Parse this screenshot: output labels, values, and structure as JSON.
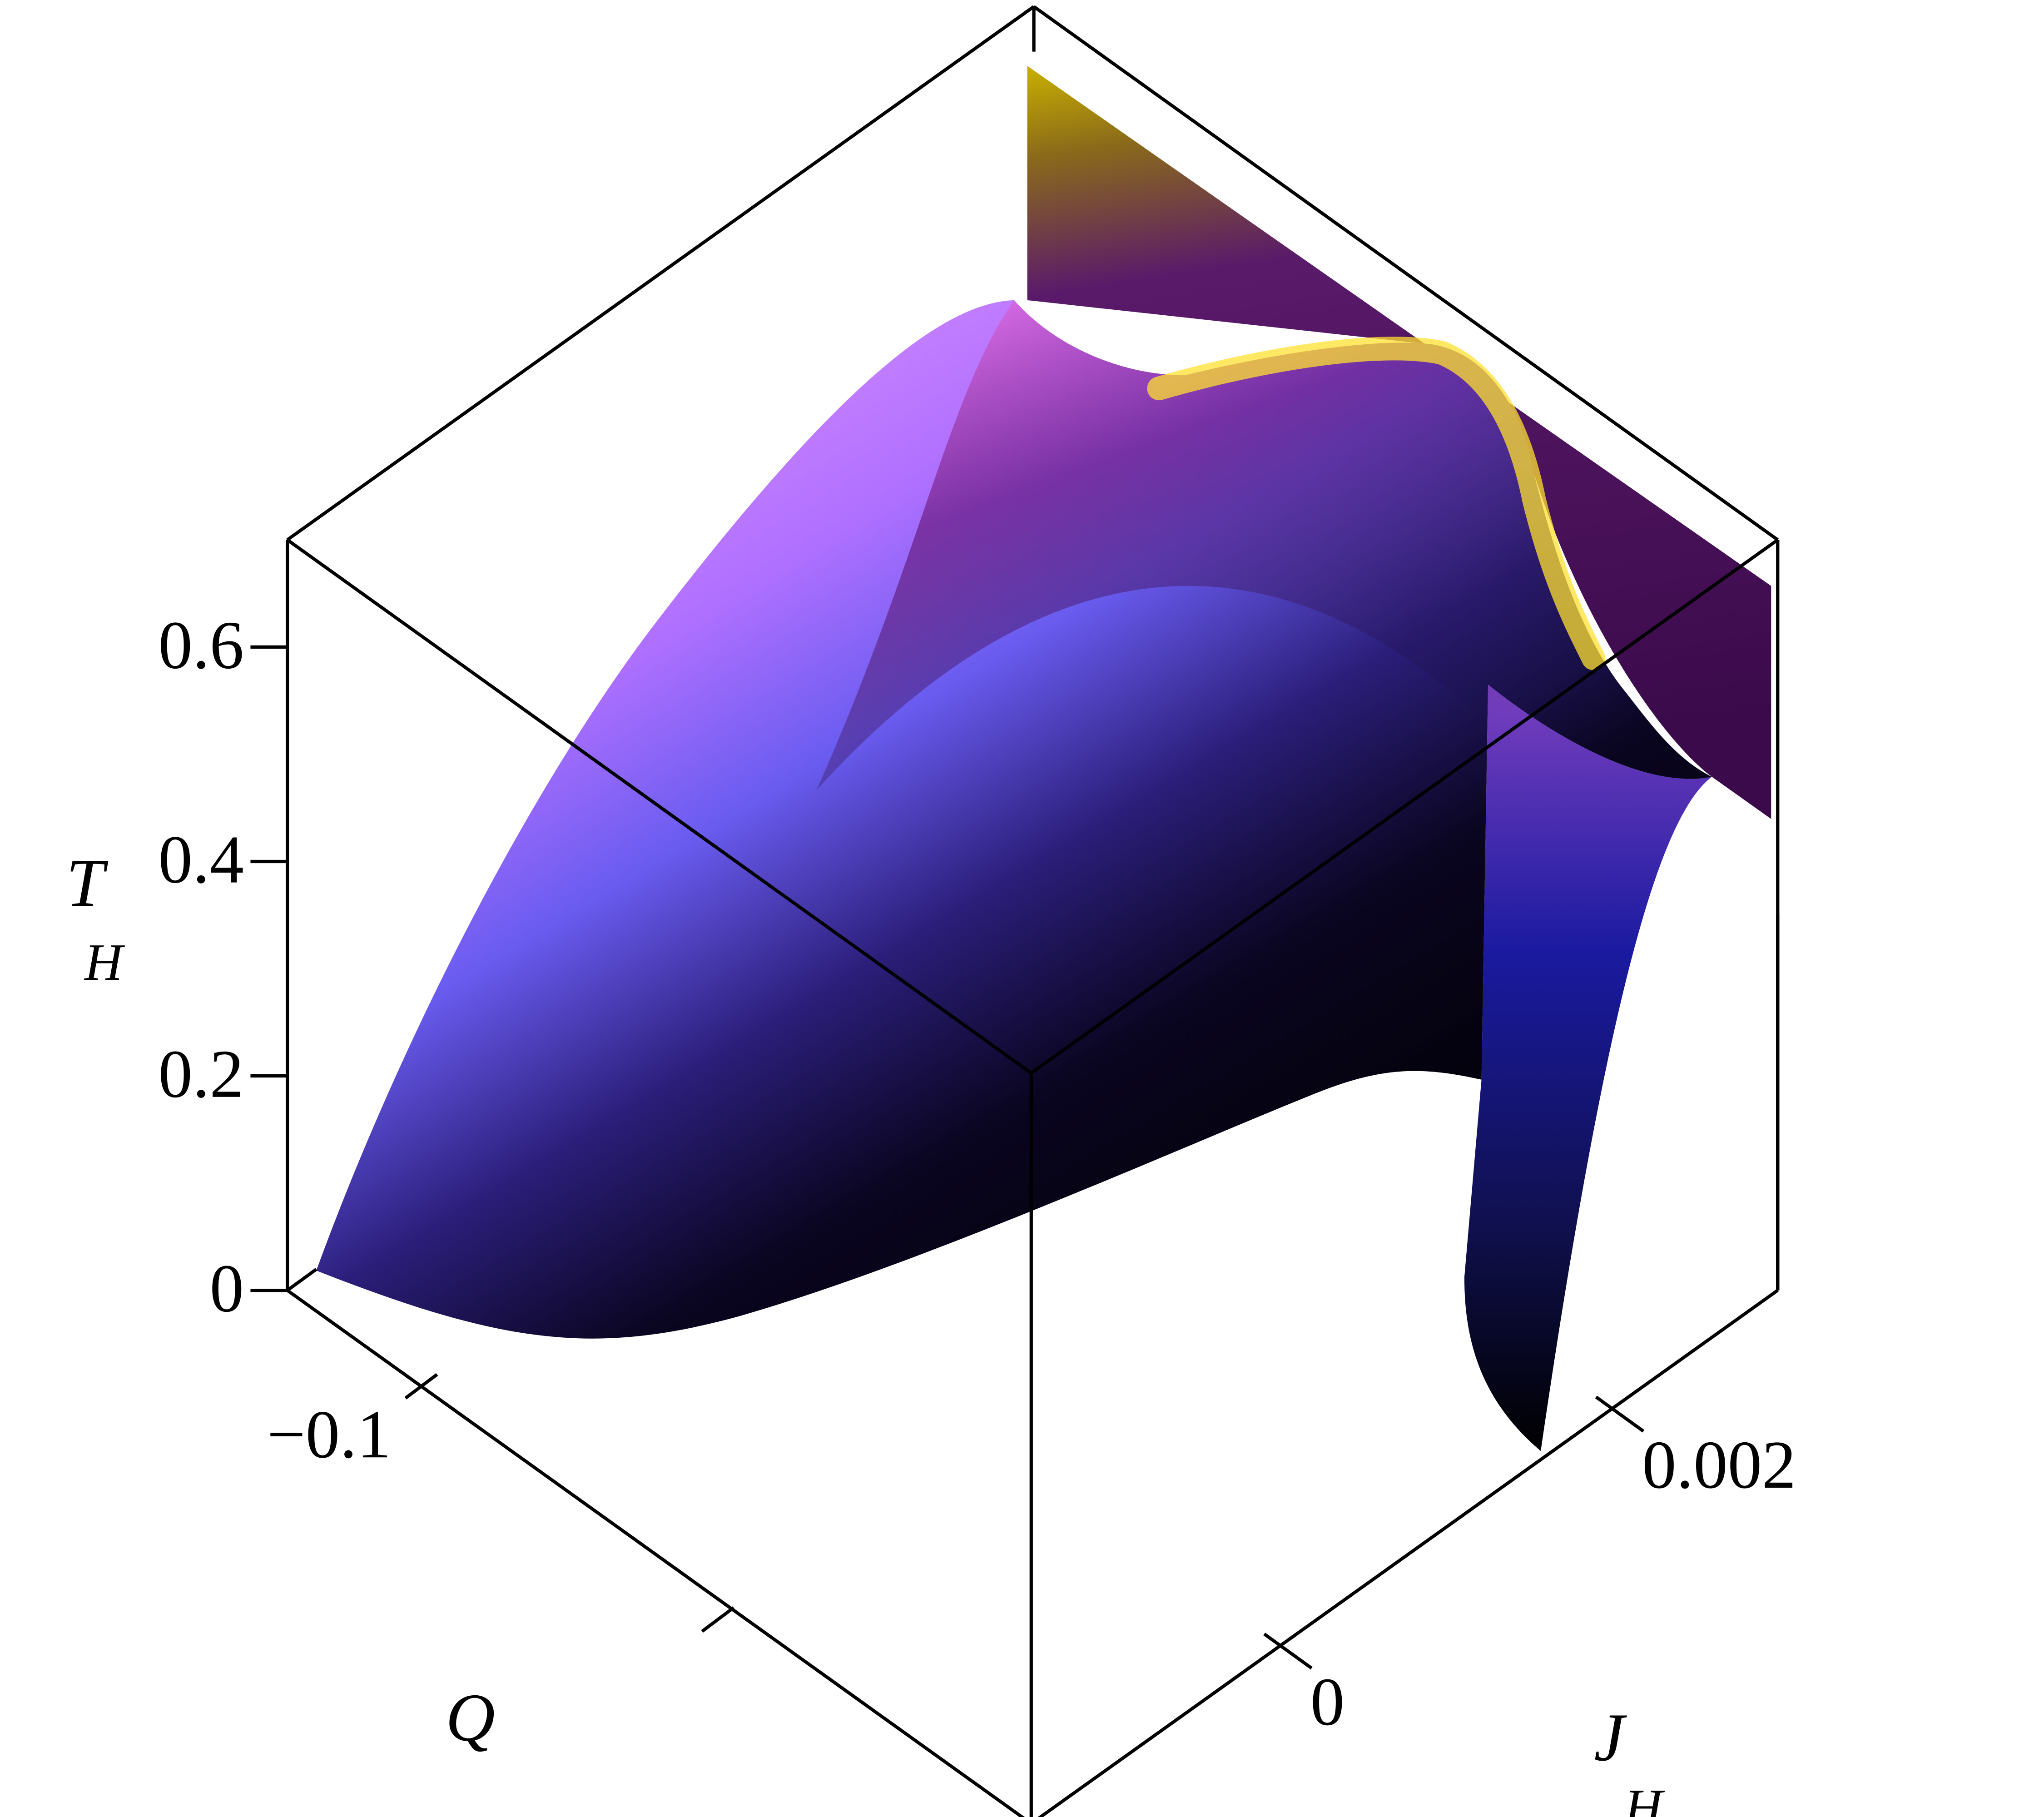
{
  "chart_data": {
    "type": "surface3d",
    "xlabel": "Q",
    "ylabel": {
      "text": "J",
      "sub": "H"
    },
    "zlabel": {
      "text": "T",
      "sub": "H"
    },
    "xlim": [
      -0.145,
      0.105
    ],
    "xticks": [
      {
        "value": -0.1,
        "label": "−0.1"
      }
    ],
    "ylim": [
      -0.0015,
      0.003
    ],
    "yticks": [
      0,
      0.002
    ],
    "zlim": [
      0,
      0.7
    ],
    "zticks": [
      0,
      0.2,
      0.4,
      0.6
    ]
  }
}
